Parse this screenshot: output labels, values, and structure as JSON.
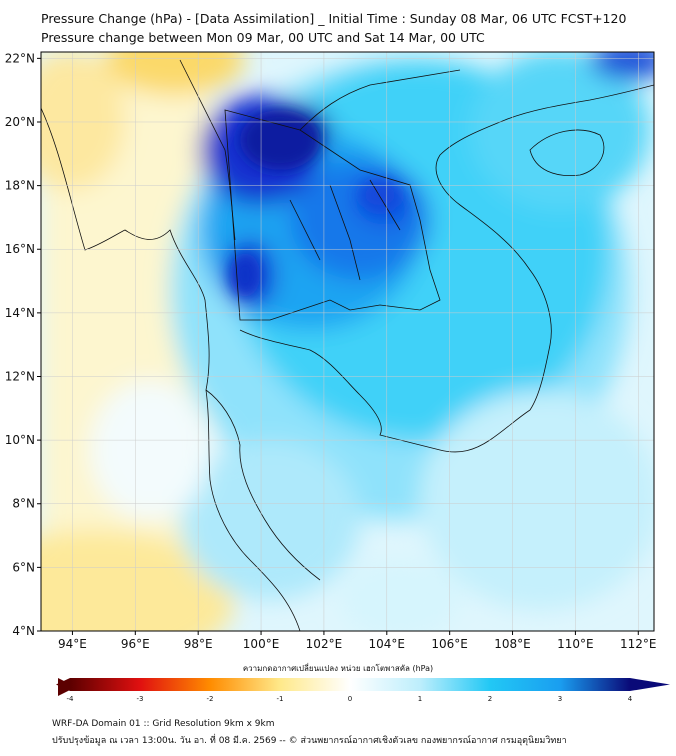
{
  "header": {
    "title_line1": "Pressure Change (hPa) - [Data Assimilation] _ Initial Time : Sunday 08 Mar, 06 UTC FCST+120",
    "title_line2": "Pressure change between Mon 09 Mar, 00 UTC and Sat 14 Mar, 00 UTC"
  },
  "map": {
    "lat_labels": [
      "22°N",
      "20°N",
      "18°N",
      "16°N",
      "14°N",
      "12°N",
      "10°N",
      "8°N",
      "6°N",
      "4°N"
    ],
    "lat_values": [
      22,
      20,
      18,
      16,
      14,
      12,
      10,
      8,
      6,
      4
    ],
    "lon_labels": [
      "94°E",
      "96°E",
      "98°E",
      "100°E",
      "102°E",
      "104°E",
      "106°E",
      "108°E",
      "110°E",
      "112°E"
    ],
    "lon_values": [
      94,
      96,
      98,
      100,
      102,
      104,
      106,
      108,
      110,
      112
    ],
    "lon_range": [
      93,
      112.5
    ],
    "lat_range": [
      4,
      22.2
    ]
  },
  "colorbar": {
    "label": "ความกดอากาศเปลี่ยนแปลง หน่วย เฮกโตพาสคัล (hPa)",
    "min": -4,
    "max": 4,
    "tick_labels": [
      "-4",
      "-3",
      "-2",
      "-1",
      "0",
      "1",
      "2",
      "3",
      "4"
    ],
    "colors": {
      "neg4": "#5c0000",
      "neg3": "#e01010",
      "neg2": "#ff8c00",
      "neg1": "#ffe98a",
      "zero": "#ffffff",
      "pos1": "#bdeefc",
      "pos2": "#22c8f5",
      "pos3": "#1a9ef0",
      "pos4": "#0a0a78"
    }
  },
  "footer": {
    "line1": "WRF-DA Domain 01 :: Grid Resolution 9km x 9km",
    "line2": "ปรับปรุงข้อมูล ณ เวลา 13:00น. วัน อา. ที่ 08 มี.ค. 2569 -- © ส่วนพยากรณ์อากาศเชิงตัวเลข กองพยากรณ์อากาศ กรมอุตุนิยมวิทยา"
  }
}
